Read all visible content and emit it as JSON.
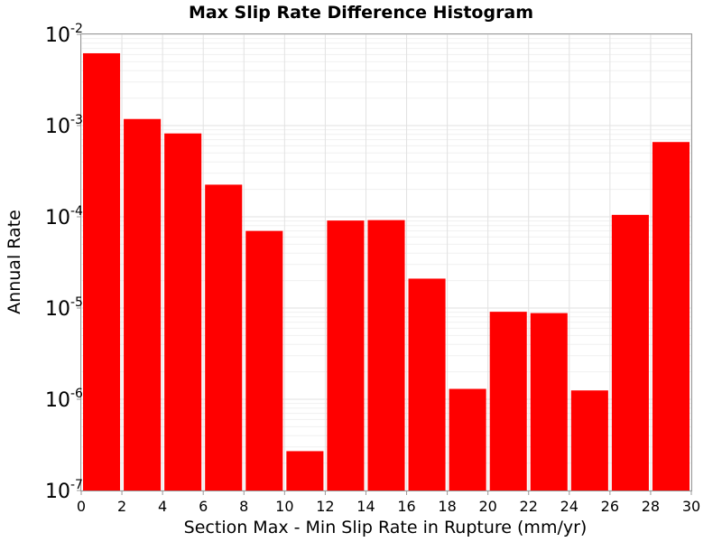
{
  "chart_data": {
    "type": "bar",
    "title": "Max Slip Rate Difference Histogram",
    "xlabel": "Section Max - Min Slip Rate in Rupture (mm/yr)",
    "ylabel": "Annual Rate",
    "xlim": [
      0,
      30
    ],
    "ylim": [
      1e-07,
      0.01
    ],
    "yscale": "log",
    "grid": true,
    "bar_color": "#ff0000",
    "bin_width": 2,
    "x": [
      1,
      3,
      5,
      7,
      9,
      11,
      13,
      15,
      17,
      19,
      21,
      23,
      25,
      27,
      29
    ],
    "values": [
      0.0062,
      0.00118,
      0.00082,
      0.000225,
      7e-05,
      2.7e-07,
      9.1e-05,
      9.2e-05,
      2.1e-05,
      1.3e-06,
      9.1e-06,
      8.8e-06,
      1.25e-06,
      0.000105,
      0.00066
    ],
    "xticks": [
      "0",
      "2",
      "4",
      "6",
      "8",
      "10",
      "12",
      "14",
      "16",
      "18",
      "20",
      "22",
      "24",
      "26",
      "28",
      "30"
    ],
    "yticks": [
      {
        "base": "10",
        "exp": "-2"
      },
      {
        "base": "10",
        "exp": "-3"
      },
      {
        "base": "10",
        "exp": "-4"
      },
      {
        "base": "10",
        "exp": "-5"
      },
      {
        "base": "10",
        "exp": "-6"
      },
      {
        "base": "10",
        "exp": "-7"
      }
    ]
  }
}
